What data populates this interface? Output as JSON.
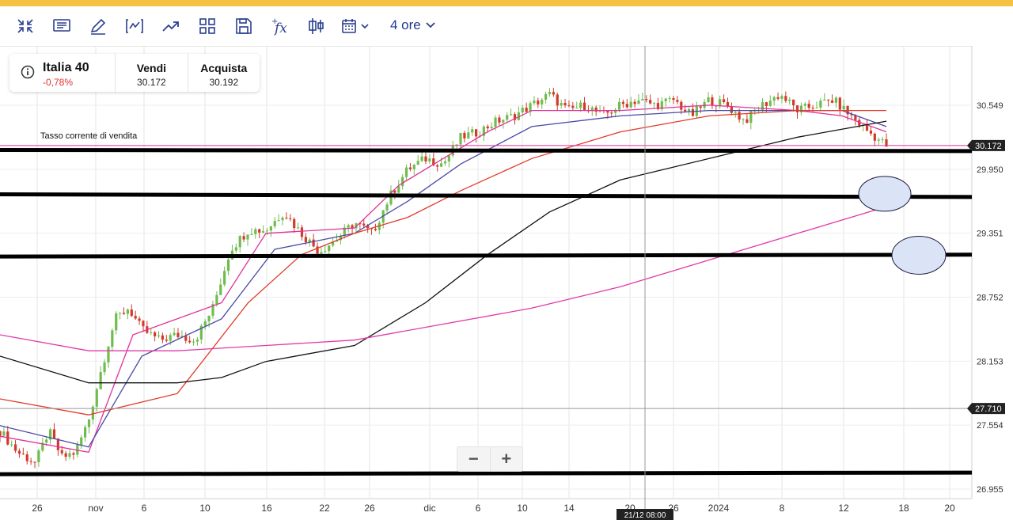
{
  "toolbar": {
    "timeframe_label": "4 ore",
    "icons": [
      "collapse-icon",
      "notes-icon",
      "draw-icon",
      "indicator-icon",
      "trend-icon",
      "layout-icon",
      "save-icon",
      "function-icon",
      "candlestick-icon",
      "calendar-icon"
    ]
  },
  "infobox": {
    "symbol": "Italia 40",
    "change": "-0,78%",
    "sell_label": "Vendi",
    "sell_value": "30.172",
    "buy_label": "Acquista",
    "buy_value": "30.192"
  },
  "chart_overlay": {
    "sell_rate_label": "Tasso corrente di vendita"
  },
  "zoom": {
    "minus": "−",
    "plus": "+"
  },
  "colors": {
    "top_bar": "#f5c242",
    "up_candle": "#6fbd4e",
    "down_candle": "#d23a2a",
    "ma_magenta": "#e0329a",
    "ma_blue": "#4a4aa8",
    "ma_red": "#e23b2a",
    "ma_black": "#111111",
    "ma_pink_slow": "#e03aa8",
    "price_badge": "#222222",
    "circle_fill": "#dbe4f6"
  },
  "chart_data": {
    "type": "candlestick",
    "instrument": "Italia 40",
    "timeframe": "4 ore",
    "y_axis_ticks": [
      30549,
      29950,
      29351,
      28752,
      28153,
      27554,
      26955
    ],
    "y_tick_labels": [
      "30.549",
      "29.950",
      "29.351",
      "28.752",
      "28.153",
      "27.554",
      "26.955"
    ],
    "ylim": [
      26900,
      30800
    ],
    "x_tick_labels": [
      "26",
      "nov",
      "6",
      "10",
      "16",
      "22",
      "26",
      "dic",
      "6",
      "10",
      "14",
      "20",
      "26",
      "2024",
      "8",
      "12",
      "18",
      "20"
    ],
    "x_tick_dates": [
      "2023-10-26",
      "2023-11-01",
      "2023-11-06",
      "2023-11-10",
      "2023-11-16",
      "2023-11-22",
      "2023-11-26",
      "2023-12-01",
      "2023-12-06",
      "2023-12-10",
      "2023-12-14",
      "2023-12-20",
      "2023-12-26",
      "2024-01-01",
      "2024-01-08",
      "2024-01-12",
      "2024-01-18",
      "2024-01-20"
    ],
    "current_price_label": "30.172",
    "current_price": 30172,
    "crosshair_price_label": "27.710",
    "crosshair_price": 27710,
    "crosshair_time_label": "21/12 08:00",
    "horizontal_levels": [
      {
        "name": "level-1",
        "from": 30130,
        "to": 30120
      },
      {
        "name": "level-2",
        "from": 29715,
        "to": 29690
      },
      {
        "name": "level-3",
        "from": 29133,
        "to": 29150
      },
      {
        "name": "level-4",
        "from": 27095,
        "to": 27110
      }
    ],
    "close_path": [
      {
        "t": 0,
        "v": 27500
      },
      {
        "t": 0.02,
        "v": 27300
      },
      {
        "t": 0.04,
        "v": 27200
      },
      {
        "t": 0.055,
        "v": 27500
      },
      {
        "t": 0.07,
        "v": 27250
      },
      {
        "t": 0.085,
        "v": 27300
      },
      {
        "t": 0.1,
        "v": 27600
      },
      {
        "t": 0.115,
        "v": 28100
      },
      {
        "t": 0.13,
        "v": 28550
      },
      {
        "t": 0.145,
        "v": 28650
      },
      {
        "t": 0.16,
        "v": 28450
      },
      {
        "t": 0.18,
        "v": 28350
      },
      {
        "t": 0.2,
        "v": 28400
      },
      {
        "t": 0.22,
        "v": 28350
      },
      {
        "t": 0.24,
        "v": 28650
      },
      {
        "t": 0.26,
        "v": 29200
      },
      {
        "t": 0.28,
        "v": 29380
      },
      {
        "t": 0.3,
        "v": 29380
      },
      {
        "t": 0.32,
        "v": 29550
      },
      {
        "t": 0.34,
        "v": 29350
      },
      {
        "t": 0.36,
        "v": 29180
      },
      {
        "t": 0.38,
        "v": 29300
      },
      {
        "t": 0.4,
        "v": 29450
      },
      {
        "t": 0.42,
        "v": 29350
      },
      {
        "t": 0.44,
        "v": 29700
      },
      {
        "t": 0.46,
        "v": 29950
      },
      {
        "t": 0.48,
        "v": 30050
      },
      {
        "t": 0.5,
        "v": 30000
      },
      {
        "t": 0.52,
        "v": 30250
      },
      {
        "t": 0.54,
        "v": 30300
      },
      {
        "t": 0.56,
        "v": 30400
      },
      {
        "t": 0.58,
        "v": 30450
      },
      {
        "t": 0.6,
        "v": 30550
      },
      {
        "t": 0.62,
        "v": 30650
      },
      {
        "t": 0.64,
        "v": 30500
      },
      {
        "t": 0.66,
        "v": 30550
      },
      {
        "t": 0.68,
        "v": 30450
      },
      {
        "t": 0.7,
        "v": 30550
      },
      {
        "t": 0.72,
        "v": 30600
      },
      {
        "t": 0.74,
        "v": 30550
      },
      {
        "t": 0.76,
        "v": 30600
      },
      {
        "t": 0.78,
        "v": 30450
      },
      {
        "t": 0.8,
        "v": 30600
      },
      {
        "t": 0.82,
        "v": 30550
      },
      {
        "t": 0.84,
        "v": 30400
      },
      {
        "t": 0.86,
        "v": 30550
      },
      {
        "t": 0.88,
        "v": 30650
      },
      {
        "t": 0.9,
        "v": 30500
      },
      {
        "t": 0.92,
        "v": 30550
      },
      {
        "t": 0.94,
        "v": 30600
      },
      {
        "t": 0.96,
        "v": 30450
      },
      {
        "t": 0.98,
        "v": 30300
      },
      {
        "t": 1.0,
        "v": 30172
      }
    ],
    "moving_averages": [
      {
        "color": "ma_magenta",
        "points": [
          [
            0,
            27450
          ],
          [
            0.1,
            27300
          ],
          [
            0.15,
            28400
          ],
          [
            0.25,
            28700
          ],
          [
            0.3,
            29350
          ],
          [
            0.4,
            29400
          ],
          [
            0.45,
            29800
          ],
          [
            0.5,
            30050
          ],
          [
            0.55,
            30300
          ],
          [
            0.6,
            30500
          ],
          [
            0.7,
            30500
          ],
          [
            0.8,
            30550
          ],
          [
            0.9,
            30500
          ],
          [
            0.95,
            30450
          ],
          [
            1.0,
            30300
          ]
        ]
      },
      {
        "color": "ma_blue",
        "points": [
          [
            0,
            27550
          ],
          [
            0.1,
            27350
          ],
          [
            0.16,
            28200
          ],
          [
            0.25,
            28550
          ],
          [
            0.31,
            29200
          ],
          [
            0.4,
            29350
          ],
          [
            0.46,
            29650
          ],
          [
            0.52,
            30000
          ],
          [
            0.6,
            30350
          ],
          [
            0.7,
            30450
          ],
          [
            0.8,
            30500
          ],
          [
            0.9,
            30500
          ],
          [
            0.95,
            30500
          ],
          [
            1.0,
            30350
          ]
        ]
      },
      {
        "color": "ma_red",
        "points": [
          [
            0,
            27800
          ],
          [
            0.1,
            27650
          ],
          [
            0.2,
            27850
          ],
          [
            0.28,
            28700
          ],
          [
            0.34,
            29150
          ],
          [
            0.4,
            29350
          ],
          [
            0.46,
            29500
          ],
          [
            0.52,
            29750
          ],
          [
            0.6,
            30050
          ],
          [
            0.7,
            30300
          ],
          [
            0.8,
            30450
          ],
          [
            0.9,
            30500
          ],
          [
            1.0,
            30500
          ]
        ]
      },
      {
        "color": "ma_black",
        "points": [
          [
            0,
            28200
          ],
          [
            0.1,
            27950
          ],
          [
            0.2,
            27950
          ],
          [
            0.25,
            28000
          ],
          [
            0.3,
            28150
          ],
          [
            0.4,
            28300
          ],
          [
            0.48,
            28700
          ],
          [
            0.55,
            29150
          ],
          [
            0.62,
            29550
          ],
          [
            0.7,
            29850
          ],
          [
            0.8,
            30050
          ],
          [
            0.9,
            30250
          ],
          [
            1.0,
            30400
          ]
        ]
      },
      {
        "color": "ma_pink_slow",
        "points": [
          [
            0,
            28400
          ],
          [
            0.1,
            28250
          ],
          [
            0.2,
            28250
          ],
          [
            0.3,
            28300
          ],
          [
            0.4,
            28350
          ],
          [
            0.5,
            28500
          ],
          [
            0.6,
            28650
          ],
          [
            0.7,
            28850
          ],
          [
            0.8,
            29100
          ],
          [
            0.9,
            29350
          ],
          [
            1.0,
            29600
          ]
        ]
      }
    ]
  }
}
